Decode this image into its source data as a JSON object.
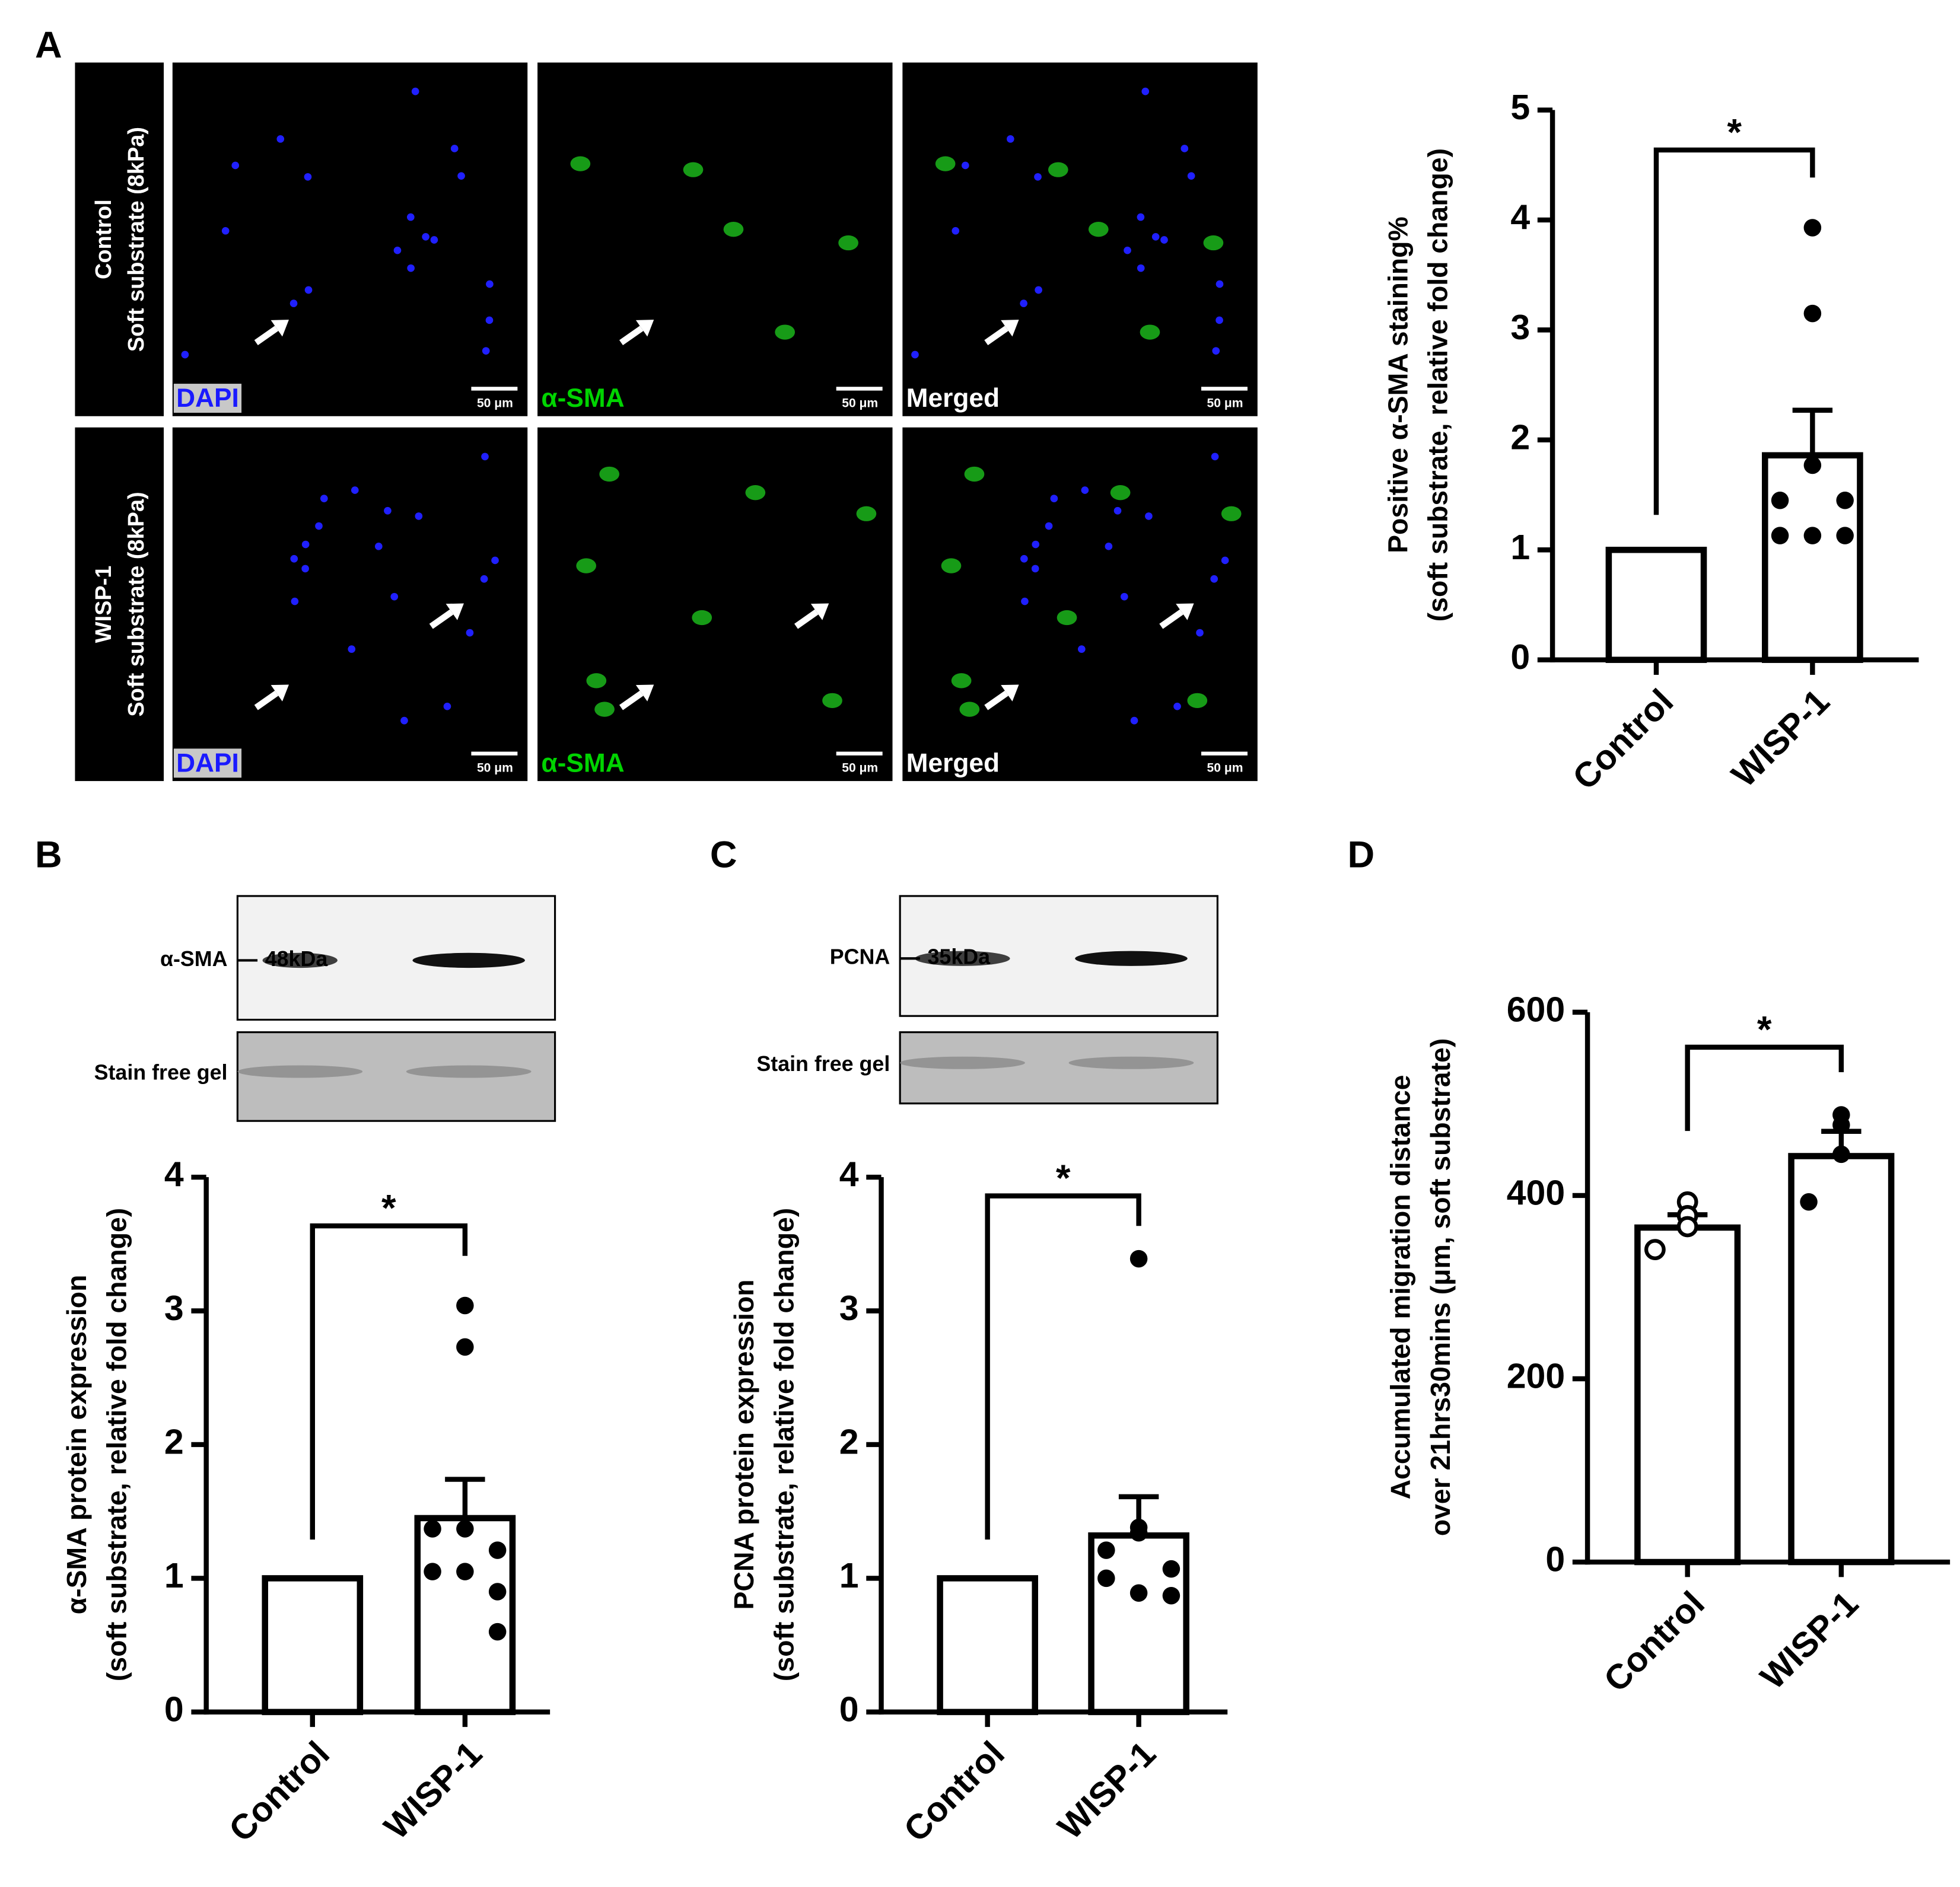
{
  "panel_labels": [
    "A",
    "B",
    "C",
    "D"
  ],
  "micrographs": {
    "row_labels": [
      [
        "Control",
        "Soft substrate (8kPa)"
      ],
      [
        "WISP-1",
        "Soft substrate (8kPa)"
      ]
    ],
    "channel_labels": [
      "DAPI",
      "α-SMA",
      "Merged"
    ],
    "scale_bar": "50 μm"
  },
  "blots": [
    {
      "protein": "α-SMA",
      "size": "48kDa",
      "loading": "Stain free gel"
    },
    {
      "protein": "PCNA",
      "size": "35kDa",
      "loading": "Stain free gel"
    }
  ],
  "chart_data": [
    {
      "type": "bar",
      "ylabel": [
        "Positive α-SMA staining%",
        "(soft substrate, relative fold change)"
      ],
      "categories": [
        "Control",
        "WISP-1"
      ],
      "values": [
        1,
        1.86
      ],
      "error": [
        null,
        0.41
      ],
      "points": [
        [],
        [
          3.93,
          3.15,
          1.77,
          1.45,
          1.45,
          1.13,
          1.13,
          1.13
        ]
      ],
      "point_styles": [
        "filled",
        "filled"
      ],
      "color": "#000000",
      "ylim": [
        0,
        5
      ],
      "yticks": [
        0,
        1,
        2,
        3,
        4,
        5
      ],
      "significance": "*"
    },
    {
      "type": "bar",
      "ylabel": [
        "α-SMA protein expression",
        "(soft substrate, relative fold change)"
      ],
      "categories": [
        "Control",
        "WISP-1"
      ],
      "values": [
        1,
        1.45
      ],
      "error": [
        null,
        0.29
      ],
      "points": [
        [],
        [
          3.04,
          2.73,
          1.37,
          1.37,
          1.21,
          1.05,
          1.05,
          0.9,
          0.6
        ]
      ],
      "point_styles": [
        "filled",
        "filled"
      ],
      "color": "#000000",
      "ylim": [
        0,
        4
      ],
      "yticks": [
        0,
        1,
        2,
        3,
        4
      ],
      "significance": "*"
    },
    {
      "type": "bar",
      "ylabel": [
        "PCNA protein expression",
        "(soft substrate, relative fold change)"
      ],
      "categories": [
        "Control",
        "WISP-1"
      ],
      "values": [
        1,
        1.32
      ],
      "error": [
        null,
        0.29
      ],
      "points": [
        [],
        [
          3.39,
          1.38,
          1.34,
          1.21,
          1.07,
          1.0,
          0.89,
          0.87
        ]
      ],
      "point_styles": [
        "filled",
        "filled"
      ],
      "color": "#000000",
      "ylim": [
        0,
        4
      ],
      "yticks": [
        0,
        1,
        2,
        3,
        4
      ],
      "significance": "*"
    },
    {
      "type": "bar",
      "ylabel": [
        "Accumulated migration distance",
        "over 21hrs30mins (μm, soft substrate)"
      ],
      "categories": [
        "Control",
        "WISP-1"
      ],
      "values": [
        365,
        443
      ],
      "error": [
        14,
        27
      ],
      "points": [
        [
          393,
          378,
          366,
          341
        ],
        [
          488,
          477,
          445,
          393
        ]
      ],
      "point_styles": [
        "open",
        "filled"
      ],
      "color": "#000000",
      "ylim": [
        0,
        600
      ],
      "yticks": [
        0,
        200,
        400,
        600
      ],
      "significance": "*"
    }
  ]
}
